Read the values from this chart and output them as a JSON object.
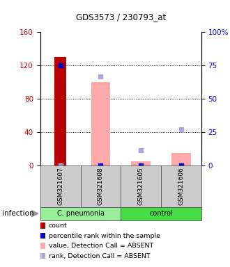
{
  "title": "GDS3573 / 230793_at",
  "samples": [
    "GSM321607",
    "GSM321608",
    "GSM321605",
    "GSM321606"
  ],
  "ylim_left": [
    0,
    160
  ],
  "yticks_left": [
    0,
    40,
    80,
    120,
    160
  ],
  "ytick_labels_left": [
    "0",
    "40",
    "80",
    "120",
    "160"
  ],
  "ytick_labels_right": [
    "0",
    "25",
    "50",
    "75",
    "100%"
  ],
  "count_values": [
    130,
    0,
    0,
    0
  ],
  "count_color": "#BB0000",
  "percentile_values": [
    120,
    0,
    0,
    0
  ],
  "percentile_color": "#0000CC",
  "value_absent_values": [
    0,
    100,
    5,
    15
  ],
  "value_absent_color": "#FFAAAA",
  "rank_absent_values": [
    0,
    107,
    18,
    43
  ],
  "rank_absent_color": "#AAAADD",
  "bar_width": 0.3,
  "group_defs": [
    {
      "label": "C. pneumonia",
      "start": 0,
      "end": 2,
      "color": "#99EE99"
    },
    {
      "label": "control",
      "start": 2,
      "end": 4,
      "color": "#44DD44"
    }
  ],
  "legend_items": [
    {
      "color": "#BB0000",
      "label": "count"
    },
    {
      "color": "#0000CC",
      "label": "percentile rank within the sample"
    },
    {
      "color": "#FFAAAA",
      "label": "value, Detection Call = ABSENT"
    },
    {
      "color": "#AAAADD",
      "label": "rank, Detection Call = ABSENT"
    }
  ],
  "infection_label": "infection"
}
